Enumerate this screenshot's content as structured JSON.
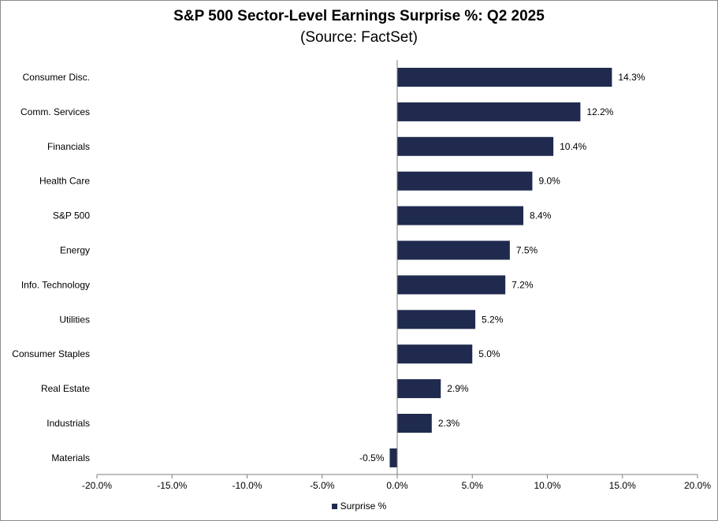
{
  "chart_data": {
    "type": "bar",
    "orientation": "horizontal",
    "title": "S&P 500 Sector-Level Earnings Surprise %: Q2 2025",
    "subtitle": "(Source: FactSet)",
    "categories": [
      "Consumer Disc.",
      "Comm. Services",
      "Financials",
      "Health Care",
      "S&P 500",
      "Energy",
      "Info. Technology",
      "Utilities",
      "Consumer Staples",
      "Real Estate",
      "Industrials",
      "Materials"
    ],
    "series": [
      {
        "name": "Surprise %",
        "values": [
          14.3,
          12.2,
          10.4,
          9.0,
          8.4,
          7.5,
          7.2,
          5.2,
          5.0,
          2.9,
          2.3,
          -0.5
        ],
        "labels": [
          "14.3%",
          "12.2%",
          "10.4%",
          "9.0%",
          "8.4%",
          "7.5%",
          "7.2%",
          "5.2%",
          "5.0%",
          "2.9%",
          "2.3%",
          "-0.5%"
        ]
      }
    ],
    "xlim": [
      -20,
      20
    ],
    "xticks": [
      -20,
      -15,
      -10,
      -5,
      0,
      5,
      10,
      15,
      20
    ],
    "xtick_labels": [
      "-20.0%",
      "-15.0%",
      "-10.0%",
      "-5.0%",
      "0.0%",
      "5.0%",
      "10.0%",
      "15.0%",
      "20.0%"
    ],
    "grid": false,
    "legend_position": "bottom-center",
    "colors": {
      "bar": "#1f2a4e",
      "axis": "#7f7f7f"
    }
  }
}
